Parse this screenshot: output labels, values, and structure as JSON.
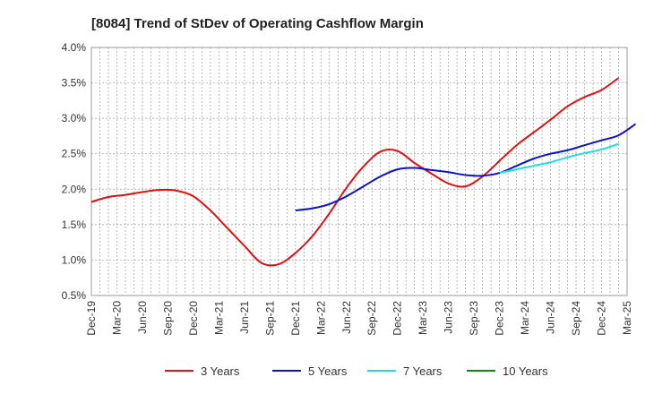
{
  "chart_data": {
    "type": "line",
    "title": "[8084]  Trend of StDev of Operating Cashflow Margin",
    "xlabel": "",
    "ylabel": "",
    "ylim": [
      0.5,
      4.0
    ],
    "yticks": [
      "0.5%",
      "1.0%",
      "1.5%",
      "2.0%",
      "2.5%",
      "3.0%",
      "3.5%",
      "4.0%"
    ],
    "ytick_values": [
      0.5,
      1.0,
      1.5,
      2.0,
      2.5,
      3.0,
      3.5,
      4.0
    ],
    "xticks": [
      "Dec-19",
      "Mar-20",
      "Jun-20",
      "Sep-20",
      "Dec-20",
      "Mar-21",
      "Jun-21",
      "Sep-21",
      "Dec-21",
      "Mar-22",
      "Jun-22",
      "Sep-22",
      "Dec-22",
      "Mar-23",
      "Jun-23",
      "Sep-23",
      "Dec-23",
      "Mar-24",
      "Jun-24",
      "Sep-24",
      "Dec-24",
      "Mar-25"
    ],
    "grid": true,
    "legend_position": "bottom",
    "series": [
      {
        "name": "3 Years",
        "color": "#dd1111",
        "start_index": 0,
        "values": [
          1.82,
          1.89,
          1.92,
          1.96,
          1.99,
          1.98,
          1.9,
          1.7,
          1.45,
          1.2,
          0.96,
          0.94,
          1.1,
          1.34,
          1.66,
          2.02,
          2.32,
          2.53,
          2.54,
          2.37,
          2.22,
          2.08,
          2.04,
          2.18,
          2.4,
          2.62,
          2.8,
          2.98,
          3.17,
          3.3,
          3.4,
          3.57
        ]
      },
      {
        "name": "5 Years",
        "color": "#0a14c8",
        "start_index": 12,
        "values": [
          1.7,
          1.73,
          1.79,
          1.9,
          2.04,
          2.18,
          2.28,
          2.3,
          2.27,
          2.24,
          2.2,
          2.19,
          2.23,
          2.33,
          2.43,
          2.5,
          2.55,
          2.62,
          2.69,
          2.76,
          2.92
        ]
      },
      {
        "name": "7 Years",
        "color": "#22dddd",
        "start_index": 24,
        "values": [
          2.23,
          2.28,
          2.33,
          2.38,
          2.45,
          2.51,
          2.56,
          2.64
        ]
      },
      {
        "name": "10 Years",
        "color": "#118811",
        "start_index": 0,
        "values": []
      }
    ]
  }
}
